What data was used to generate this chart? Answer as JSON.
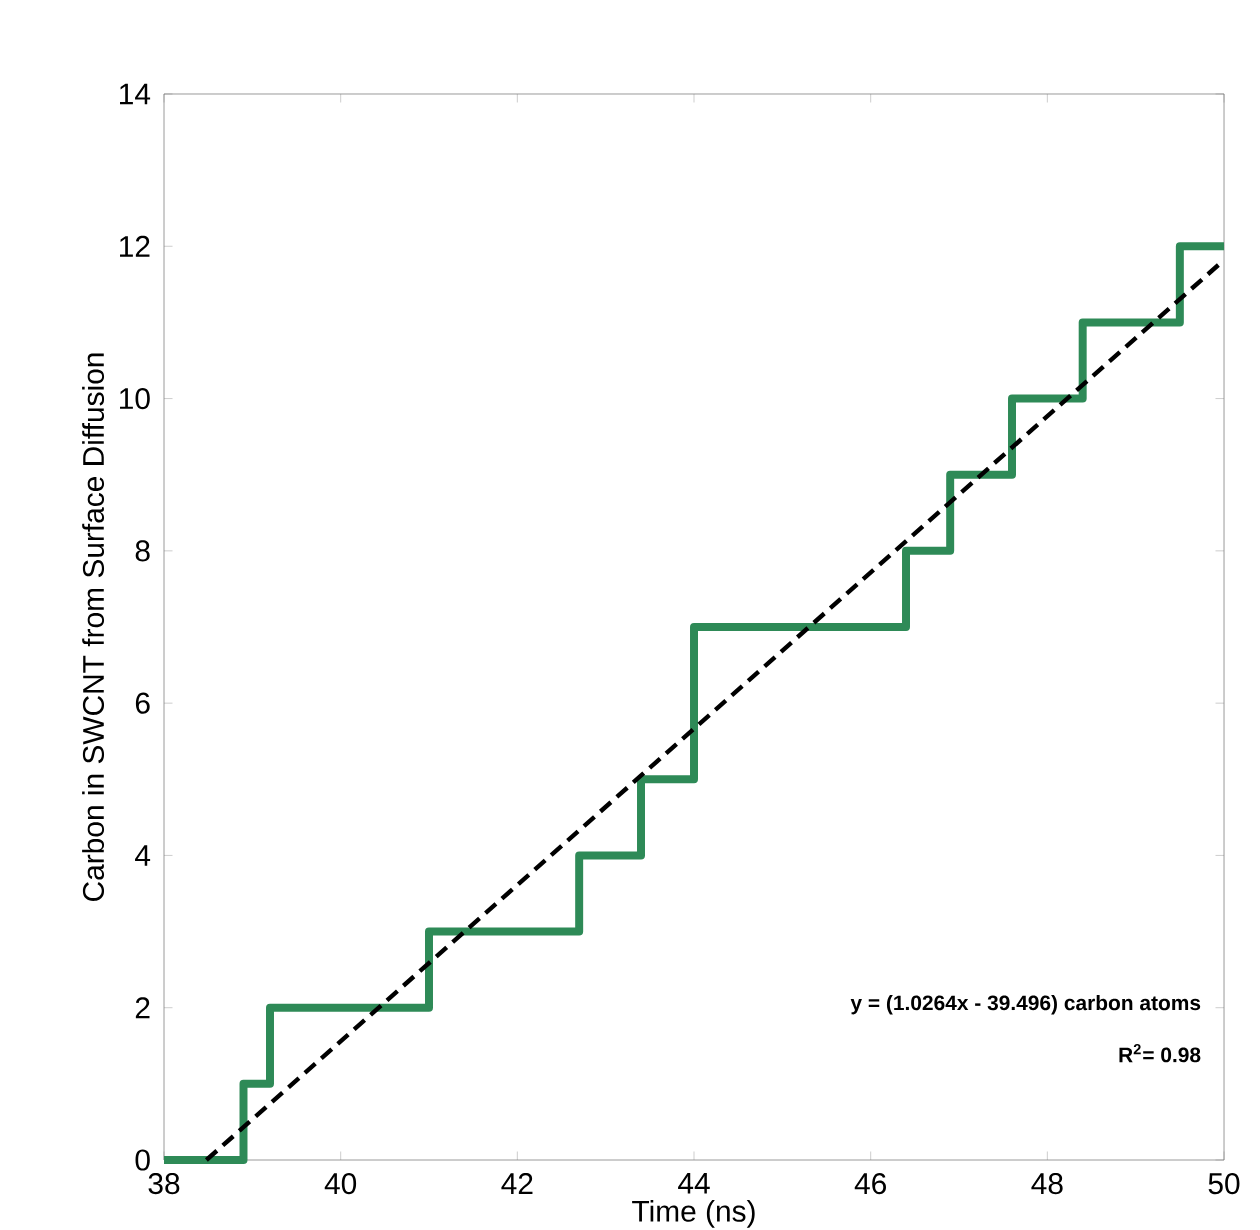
{
  "chart_data": {
    "type": "step",
    "xlabel": "Time (ns)",
    "ylabel": "Carbon in SWCNT from Surface Diffusion",
    "xlim": [
      38,
      50
    ],
    "xticks": [
      38,
      40,
      42,
      44,
      46,
      48,
      50
    ],
    "ylim": [
      0,
      14
    ],
    "yticks": [
      0,
      2,
      4,
      6,
      8,
      10,
      12,
      14
    ],
    "grid": false,
    "marker": "none",
    "series": [
      {
        "color": "#2e8a57",
        "x": [
          38,
          38.9,
          39.2,
          41,
          42.7,
          43.4,
          44,
          46.4,
          46.9,
          47.6,
          48.4,
          49.5,
          50
        ],
        "values": [
          0,
          1,
          2,
          3,
          4,
          5,
          7,
          8,
          9,
          10,
          11,
          12,
          12
        ]
      },
      {
        "type": "line",
        "color": "#000000",
        "line_style": "dashed",
        "x": [
          38.48,
          50
        ],
        "values": [
          0,
          11.82
        ]
      }
    ],
    "annotations": [
      "y = (1.0264x - 39.496) carbon atoms",
      "R$^{2}$= 0.98"
    ]
  }
}
